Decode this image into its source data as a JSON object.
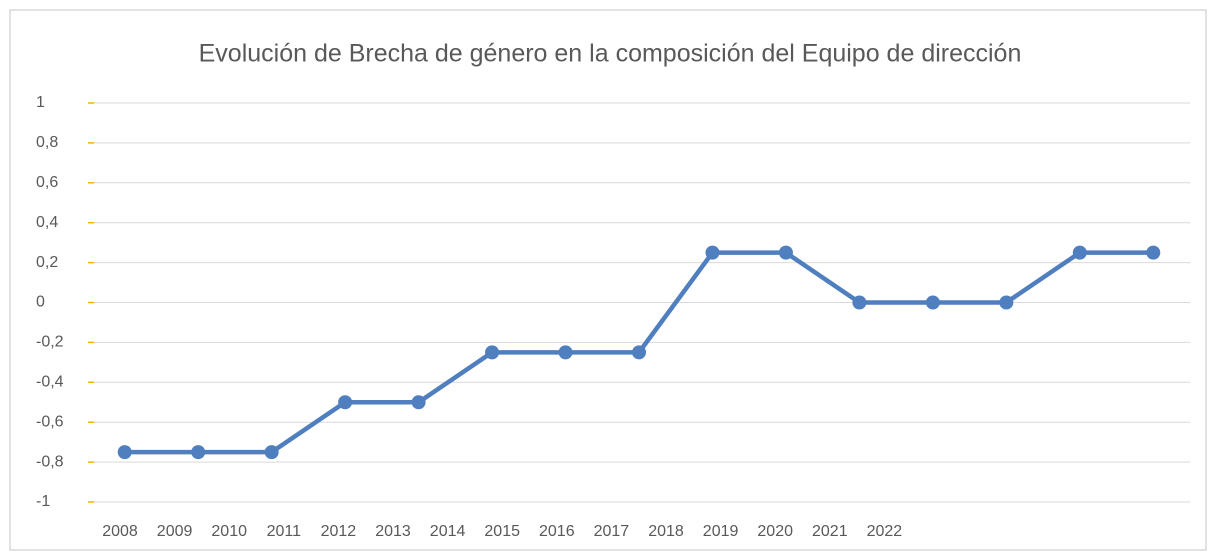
{
  "chart_data": {
    "type": "line",
    "title": "Evolución de Brecha de género en la composición del Equipo de dirección",
    "categories": [
      "2008",
      "2009",
      "2010",
      "2011",
      "2012",
      "2013",
      "2014",
      "2015",
      "2016",
      "2017",
      "2018",
      "2019",
      "2020",
      "2021",
      "2022"
    ],
    "series": [
      {
        "name": "Brecha de género",
        "color": "#4f7fbe",
        "values": [
          -0.75,
          -0.75,
          -0.75,
          -0.5,
          -0.5,
          -0.25,
          -0.25,
          -0.25,
          0.25,
          0.25,
          0,
          0,
          0,
          0.25,
          0.25
        ]
      }
    ],
    "ylim": [
      -1,
      1
    ],
    "yticks": [
      -1,
      {
        "value": -0.8,
        "label": "-0,8"
      },
      {
        "value": -0.6,
        "label": "-0,6"
      },
      {
        "value": -0.4,
        "label": "-0,4"
      },
      {
        "value": -0.2,
        "label": "-0,2"
      },
      0,
      {
        "value": 0.2,
        "label": "0,2"
      },
      {
        "value": 0.4,
        "label": "0,4"
      },
      {
        "value": 0.6,
        "label": "0,6"
      },
      {
        "value": 0.8,
        "label": "0,8"
      },
      1
    ],
    "grid": true
  }
}
